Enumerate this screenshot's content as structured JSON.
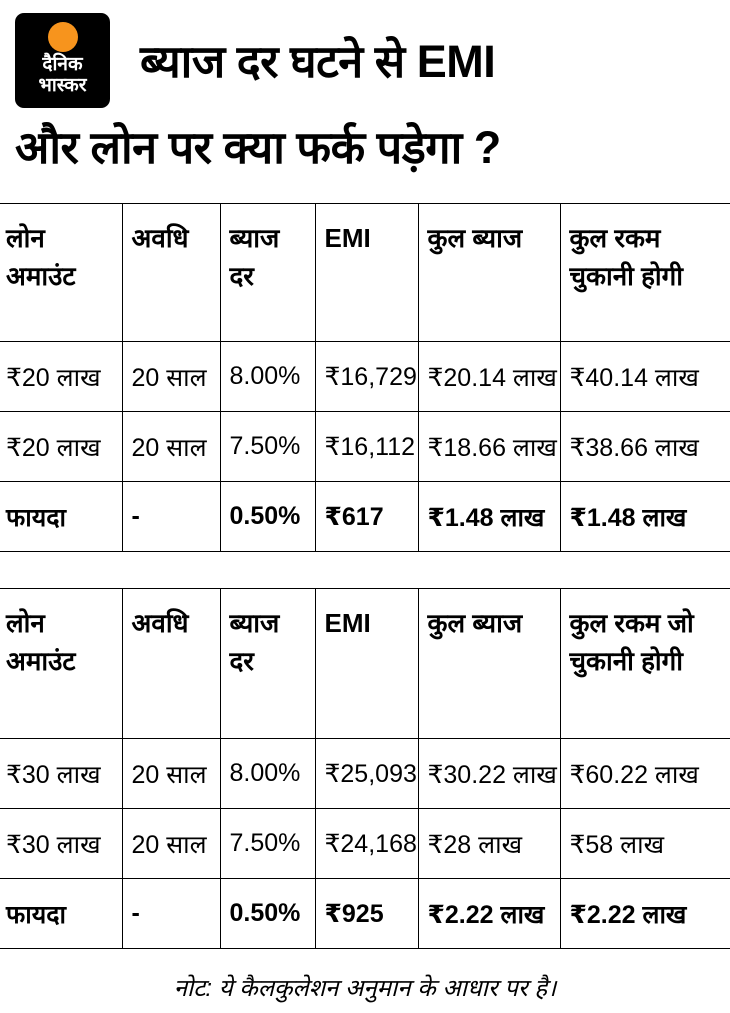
{
  "logo": {
    "line1": "दैनिक",
    "line2": "भास्कर",
    "circle_color": "#F7941D",
    "background_color": "#000000"
  },
  "title": {
    "line1": "ब्याज दर घटने से EMI",
    "line2": "और लोन पर क्या फर्क पड़ेगा ?"
  },
  "chart_data": [
    {
      "type": "table",
      "columns": [
        "लोन अमाउंट",
        "अवधि",
        "ब्याज दर",
        "EMI",
        "कुल ब्याज",
        "कुल रकम चुकानी होगी"
      ],
      "rows": [
        [
          "₹20 लाख",
          "20 साल",
          "8.00%",
          "₹16,729",
          "₹20.14 लाख",
          "₹40.14 लाख"
        ],
        [
          "₹20 लाख",
          "20 साल",
          "7.50%",
          "₹16,112",
          "₹18.66 लाख",
          "₹38.66 लाख"
        ],
        [
          "फायदा",
          "-",
          "0.50%",
          "₹617",
          "₹1.48 लाख",
          "₹1.48 लाख"
        ]
      ]
    },
    {
      "type": "table",
      "columns": [
        "लोन अमाउंट",
        "अवधि",
        "ब्याज दर",
        "EMI",
        "कुल ब्याज",
        "कुल रकम जो चुकानी होगी"
      ],
      "rows": [
        [
          "₹30 लाख",
          "20 साल",
          "8.00%",
          "₹25,093",
          "₹30.22 लाख",
          "₹60.22 लाख"
        ],
        [
          "₹30 लाख",
          "20 साल",
          "7.50%",
          "₹24,168",
          "₹28 लाख",
          "₹58 लाख"
        ],
        [
          "फायदा",
          "-",
          "0.50%",
          "₹925",
          "₹2.22 लाख",
          "₹2.22 लाख"
        ]
      ]
    }
  ],
  "footer_note": "नोट: ये कैलकुलेशन अनुमान के आधार पर है।"
}
